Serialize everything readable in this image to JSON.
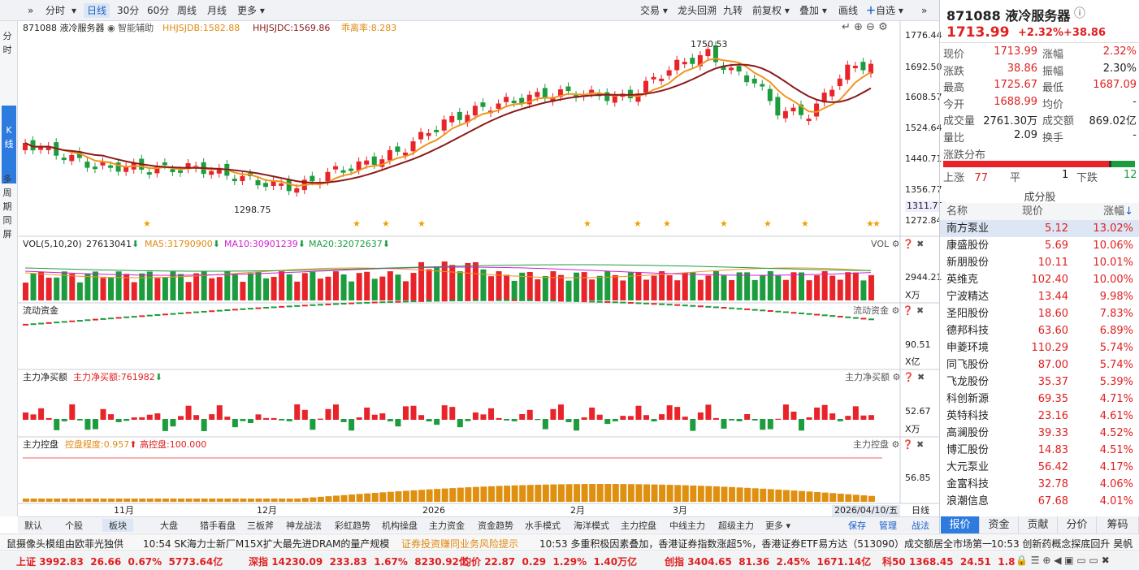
{
  "toolbar": {
    "items": [
      "分时",
      "日线",
      "30分",
      "60分",
      "周线",
      "月线",
      "更多"
    ],
    "right": [
      "交易",
      "龙头回溯",
      "九转",
      "前复权",
      "叠加",
      "画线",
      "自选"
    ]
  },
  "leftstrip": {
    "top": "分时",
    "k": "K线",
    "bottom": "多周期同屏"
  },
  "chart": {
    "header": {
      "code_name": "871088 液冷服务器",
      "assist": "智能辅助",
      "hhjsjdb": "HHJSJDB:1582.88",
      "hhjsjdc": "HHJSJDC:1569.86",
      "deviation": "乖离率:8.283"
    },
    "price_axis": [
      "1776.44",
      "1692.50",
      "1608.57",
      "1524.64",
      "1440.71",
      "1356.77",
      "1311.71",
      "1272.84"
    ],
    "high_label": "1750.53",
    "low_label": "1298.75",
    "vol_header": {
      "vol": "VOL(5,10,20)",
      "v": "27613041",
      "ma5": "MA5:31790900",
      "ma10": "MA10:30901239",
      "ma20": "MA20:32072637",
      "right": "VOL"
    },
    "vol_axis": [
      "2944.21",
      "X万"
    ],
    "flow_header": {
      "title": "流动资金",
      "right": "流动资金"
    },
    "flow_axis": [
      "90.51",
      "X亿"
    ],
    "net_header": {
      "title": "主力净买额",
      "value": "主力净买额:761982",
      "right": "主力净买额"
    },
    "net_axis": [
      "52.67",
      "X万"
    ],
    "ctrl_header": {
      "title": "主力控盘",
      "degree": "控盘程度:0.957",
      "high": "高控盘:100.000",
      "right": "主力控盘"
    },
    "ctrl_axis": [
      "56.85"
    ],
    "dates": [
      "11月",
      "12月",
      "2026",
      "2月",
      "3月"
    ],
    "date_cursor": "2026/04/10/五",
    "date_right": "日线",
    "colors": {
      "up": "#e8242a",
      "down": "#1d9c3e",
      "ma_orange": "#f0951e",
      "ma_dark": "#8b1a1a"
    }
  },
  "bottom_tabs": [
    "默认",
    "个股",
    "板块",
    "大盘",
    "猎手看盘",
    "三板斧",
    "神龙战法",
    "彩虹趋势",
    "机构操盘",
    "主力资金",
    "资金趋势",
    "水手模式",
    "海洋模式",
    "主力控盘",
    "中线主力",
    "超级主力",
    "更多"
  ],
  "bottom_right": [
    "保存",
    "管理",
    "战法"
  ],
  "right": {
    "title": "871088 液冷服务器",
    "price": "1713.99",
    "pct": "+2.32%",
    "chg": "+38.86",
    "stats": [
      [
        "现价",
        "1713.99",
        "涨幅",
        "2.32%"
      ],
      [
        "涨跌",
        "38.86",
        "振幅",
        "2.30%"
      ],
      [
        "最高",
        "1725.67",
        "最低",
        "1687.09"
      ],
      [
        "今开",
        "1688.99",
        "均价",
        "-"
      ],
      [
        "成交量",
        "2761.30万",
        "成交额",
        "869.02亿"
      ],
      [
        "量比",
        "2.09",
        "换手",
        "-"
      ]
    ],
    "dist_title": "涨跌分布",
    "dist": {
      "up_label": "上涨",
      "up": "77",
      "flat_label": "平",
      "flat": "1",
      "down_label": "下跌",
      "down": "12"
    },
    "constituents_title": "成分股",
    "headers": [
      "名称",
      "现价",
      "涨幅"
    ],
    "constituents": [
      [
        "南方泵业",
        "5.12",
        "13.02%"
      ],
      [
        "康盛股份",
        "5.69",
        "10.06%"
      ],
      [
        "新朋股份",
        "10.11",
        "10.01%"
      ],
      [
        "英维克",
        "102.40",
        "10.00%"
      ],
      [
        "宁波精达",
        "13.44",
        "9.98%"
      ],
      [
        "圣阳股份",
        "18.60",
        "7.83%"
      ],
      [
        "德邦科技",
        "63.60",
        "6.89%"
      ],
      [
        "申菱环境",
        "110.29",
        "5.74%"
      ],
      [
        "同飞股份",
        "87.00",
        "5.74%"
      ],
      [
        "飞龙股份",
        "35.37",
        "5.39%"
      ],
      [
        "科创新源",
        "69.35",
        "4.71%"
      ],
      [
        "英特科技",
        "23.16",
        "4.61%"
      ],
      [
        "高澜股份",
        "39.33",
        "4.52%"
      ],
      [
        "博汇股份",
        "14.83",
        "4.51%"
      ],
      [
        "大元泵业",
        "56.42",
        "4.17%"
      ],
      [
        "金富科技",
        "32.78",
        "4.06%"
      ],
      [
        "浪潮信息",
        "67.68",
        "4.01%"
      ]
    ],
    "tabs": [
      "报价",
      "资金",
      "贡献",
      "分价",
      "筹码"
    ]
  },
  "news": [
    "鼠摄像头模组由欧菲光独供",
    "10:54 SK海力士新厂M15X扩大最先进DRAM的量产规模",
    "证券投资赚同业务风险提示",
    "10:53 多重积极因素叠加，香港证券指数涨超5%，香港证券ETF易方达（513090）成交额居全市场第一",
    "10:53 创新药概念探底回升 昊帆"
  ],
  "indices": [
    {
      "name": "上证",
      "val": "3992.83",
      "chg": "26.66",
      "pct": "0.67%",
      "amt": "5773.64亿"
    },
    {
      "name": "深指",
      "val": "14230.09",
      "chg": "233.83",
      "pct": "1.67%",
      "amt": "8230.92亿"
    },
    {
      "name": "均价",
      "val": "22.87",
      "chg": "0.29",
      "pct": "1.29%",
      "amt": "1.40万亿"
    },
    {
      "name": "创指",
      "val": "3404.65",
      "chg": "81.36",
      "pct": "2.45%",
      "amt": "1671.14亿"
    },
    {
      "name": "科50",
      "val": "1368.45",
      "chg": "24.51",
      "pct": "1.8"
    }
  ]
}
